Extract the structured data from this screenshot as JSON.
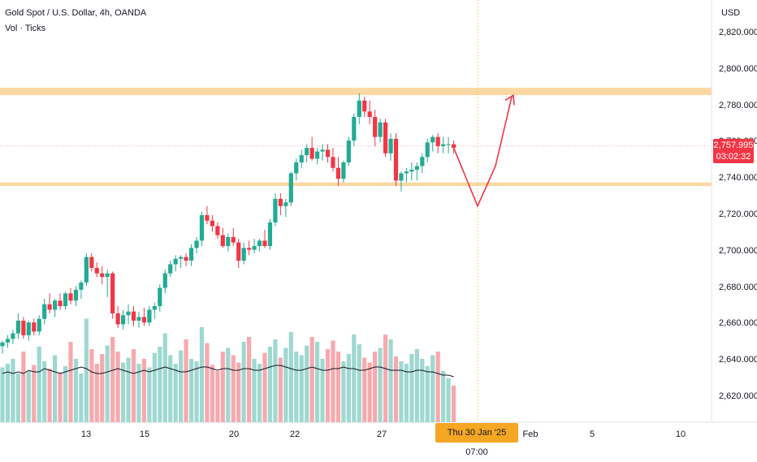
{
  "header": {
    "symbol_title": "Gold Spot / U.S. Dollar, 4h, OANDA",
    "indicator_label": "Vol · Ticks"
  },
  "currency": "USD",
  "price_tag": {
    "price": "2,757.995",
    "countdown": "03:02:32"
  },
  "date_tag": {
    "label": "Thu 30 Jan '25   07:00"
  },
  "colors": {
    "up": "#22ab94",
    "down": "#f23645",
    "vol_up": "#9ed8d1",
    "vol_down": "#f7a9ae",
    "zone": "#fbd8a3",
    "projection": "#f23645",
    "vol_ma": "#131722"
  },
  "chart_data": {
    "type": "candlestick",
    "title": "Gold Spot / U.S. Dollar, 4h, OANDA",
    "y_axis": {
      "unit": "USD",
      "range": [
        2610,
        2830
      ],
      "ticks": [
        "2,620.000",
        "2,640.000",
        "2,660.000",
        "2,680.000",
        "2,700.000",
        "2,720.000",
        "2,740.000",
        "2,760.000",
        "2,780.000",
        "2,800.000",
        "2,820.000"
      ],
      "tick_values": [
        2620,
        2640,
        2660,
        2680,
        2700,
        2720,
        2740,
        2760,
        2780,
        2800,
        2820
      ]
    },
    "x_axis": {
      "labels": [
        "13",
        "15",
        "20",
        "22",
        "27",
        "Feb",
        "5",
        "10"
      ]
    },
    "zones": [
      {
        "name": "resistance",
        "from": 2786,
        "to": 2790
      },
      {
        "name": "support",
        "from": 2736,
        "to": 2738
      }
    ],
    "current_price": 2757.995,
    "candles": [
      [
        2648,
        2651,
        2644,
        2650
      ],
      [
        2650,
        2654,
        2647,
        2652
      ],
      [
        2652,
        2657,
        2649,
        2655
      ],
      [
        2655,
        2666,
        2652,
        2662
      ],
      [
        2662,
        2664,
        2652,
        2654
      ],
      [
        2654,
        2662,
        2651,
        2661
      ],
      [
        2661,
        2663,
        2654,
        2656
      ],
      [
        2656,
        2665,
        2654,
        2663
      ],
      [
        2663,
        2674,
        2660,
        2671
      ],
      [
        2671,
        2677,
        2666,
        2668
      ],
      [
        2668,
        2674,
        2664,
        2673
      ],
      [
        2673,
        2677,
        2668,
        2670
      ],
      [
        2670,
        2678,
        2668,
        2677
      ],
      [
        2677,
        2680,
        2671,
        2673
      ],
      [
        2673,
        2681,
        2670,
        2679
      ],
      [
        2679,
        2684,
        2674,
        2683
      ],
      [
        2683,
        2699,
        2681,
        2697
      ],
      [
        2697,
        2699,
        2689,
        2691
      ],
      [
        2691,
        2694,
        2686,
        2688
      ],
      [
        2688,
        2692,
        2682,
        2686
      ],
      [
        2686,
        2690,
        2675,
        2688
      ],
      [
        2688,
        2689,
        2663,
        2666
      ],
      [
        2666,
        2670,
        2658,
        2660
      ],
      [
        2660,
        2668,
        2657,
        2665
      ],
      [
        2665,
        2671,
        2660,
        2667
      ],
      [
        2667,
        2670,
        2659,
        2662
      ],
      [
        2662,
        2667,
        2658,
        2664
      ],
      [
        2664,
        2669,
        2659,
        2661
      ],
      [
        2661,
        2670,
        2659,
        2668
      ],
      [
        2668,
        2672,
        2663,
        2670
      ],
      [
        2670,
        2682,
        2667,
        2680
      ],
      [
        2680,
        2690,
        2677,
        2688
      ],
      [
        2688,
        2695,
        2686,
        2693
      ],
      [
        2693,
        2698,
        2689,
        2696
      ],
      [
        2696,
        2698,
        2691,
        2697
      ],
      [
        2697,
        2699,
        2692,
        2695
      ],
      [
        2695,
        2704,
        2692,
        2702
      ],
      [
        2702,
        2708,
        2699,
        2706
      ],
      [
        2706,
        2722,
        2703,
        2720
      ],
      [
        2720,
        2725,
        2715,
        2717
      ],
      [
        2717,
        2720,
        2711,
        2714
      ],
      [
        2714,
        2716,
        2707,
        2709
      ],
      [
        2709,
        2713,
        2702,
        2703
      ],
      [
        2703,
        2710,
        2700,
        2708
      ],
      [
        2708,
        2713,
        2703,
        2705
      ],
      [
        2705,
        2707,
        2691,
        2695
      ],
      [
        2695,
        2705,
        2693,
        2702
      ],
      [
        2702,
        2706,
        2698,
        2701
      ],
      [
        2701,
        2707,
        2699,
        2703
      ],
      [
        2703,
        2707,
        2700,
        2706
      ],
      [
        2706,
        2712,
        2702,
        2703
      ],
      [
        2703,
        2718,
        2701,
        2716
      ],
      [
        2716,
        2732,
        2714,
        2729
      ],
      [
        2729,
        2732,
        2720,
        2725
      ],
      [
        2725,
        2729,
        2719,
        2727
      ],
      [
        2727,
        2744,
        2725,
        2743
      ],
      [
        2743,
        2751,
        2739,
        2749
      ],
      [
        2749,
        2756,
        2746,
        2753
      ],
      [
        2753,
        2759,
        2749,
        2757
      ],
      [
        2757,
        2763,
        2750,
        2751
      ],
      [
        2751,
        2757,
        2748,
        2755
      ],
      [
        2755,
        2759,
        2750,
        2756
      ],
      [
        2756,
        2759,
        2749,
        2752
      ],
      [
        2752,
        2757,
        2744,
        2746
      ],
      [
        2746,
        2752,
        2736,
        2740
      ],
      [
        2740,
        2750,
        2738,
        2749
      ],
      [
        2749,
        2763,
        2747,
        2761
      ],
      [
        2761,
        2776,
        2758,
        2774
      ],
      [
        2774,
        2787,
        2770,
        2783
      ],
      [
        2783,
        2785,
        2774,
        2777
      ],
      [
        2777,
        2783,
        2770,
        2774
      ],
      [
        2774,
        2778,
        2758,
        2763
      ],
      [
        2763,
        2773,
        2760,
        2771
      ],
      [
        2771,
        2773,
        2752,
        2754
      ],
      [
        2754,
        2765,
        2750,
        2762
      ],
      [
        2762,
        2765,
        2736,
        2739
      ],
      [
        2739,
        2744,
        2733,
        2743
      ],
      [
        2743,
        2746,
        2738,
        2744
      ],
      [
        2744,
        2749,
        2739,
        2745
      ],
      [
        2745,
        2749,
        2739,
        2747
      ],
      [
        2747,
        2754,
        2743,
        2752
      ],
      [
        2752,
        2762,
        2749,
        2760
      ],
      [
        2760,
        2764,
        2755,
        2763
      ],
      [
        2763,
        2765,
        2754,
        2758
      ],
      [
        2758,
        2763,
        2754,
        2759
      ],
      [
        2759,
        2763,
        2754,
        2759
      ],
      [
        2759,
        2761,
        2754,
        2757
      ]
    ],
    "volume": [
      45,
      48,
      52,
      40,
      58,
      42,
      47,
      62,
      50,
      44,
      55,
      41,
      46,
      66,
      52,
      40,
      85,
      60,
      48,
      56,
      63,
      70,
      58,
      49,
      53,
      60,
      48,
      52,
      45,
      57,
      62,
      73,
      55,
      48,
      59,
      68,
      52,
      50,
      78,
      65,
      47,
      42,
      58,
      61,
      55,
      49,
      66,
      70,
      52,
      48,
      57,
      62,
      68,
      53,
      61,
      74,
      58,
      55,
      63,
      70,
      66,
      52,
      60,
      67,
      58,
      50,
      56,
      72,
      64,
      53,
      49,
      58,
      61,
      72,
      68,
      54,
      50,
      48,
      56,
      60,
      52,
      46,
      55,
      58,
      42,
      36,
      30
    ],
    "volume_ma": [
      0.3,
      0.31,
      0.3,
      0.31,
      0.3,
      0.32,
      0.31,
      0.31,
      0.33,
      0.32,
      0.31,
      0.3,
      0.31,
      0.32,
      0.33,
      0.34,
      0.33,
      0.31,
      0.3,
      0.3,
      0.31,
      0.32,
      0.33,
      0.32,
      0.31,
      0.3,
      0.31,
      0.32,
      0.31,
      0.32,
      0.33,
      0.34,
      0.33,
      0.32,
      0.31,
      0.31,
      0.32,
      0.33,
      0.34,
      0.34,
      0.33,
      0.32,
      0.33,
      0.33,
      0.32,
      0.32,
      0.33,
      0.33,
      0.32,
      0.32,
      0.33,
      0.34,
      0.35,
      0.35,
      0.34,
      0.33,
      0.32,
      0.32,
      0.33,
      0.34,
      0.33,
      0.32,
      0.32,
      0.33,
      0.33,
      0.34,
      0.33,
      0.33,
      0.32,
      0.32,
      0.33,
      0.34,
      0.34,
      0.33,
      0.32,
      0.32,
      0.32,
      0.31,
      0.31,
      0.32,
      0.32,
      0.31,
      0.31,
      0.3,
      0.29,
      0.29,
      0.28
    ],
    "projection_path": [
      [
        2757,
        2725
      ],
      [
        2760,
        2747
      ],
      [
        2747,
        2785
      ]
    ]
  }
}
